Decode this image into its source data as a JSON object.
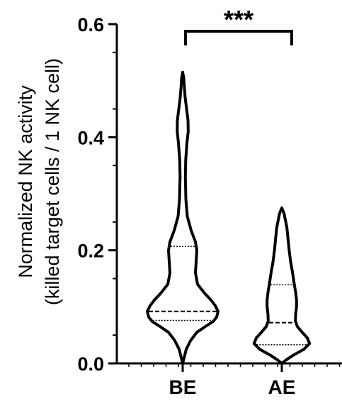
{
  "chart_data": {
    "type": "violin",
    "title": "",
    "ylabel_line1": "Normalized NK activity",
    "ylabel_line2": "(killed target cells / 1 NK cell)",
    "xlabel": "",
    "ylim": [
      0,
      0.6
    ],
    "yticks": [
      0.0,
      0.2,
      0.4,
      0.6
    ],
    "ytick_labels": [
      "0.0",
      "0.2",
      "0.4",
      "0.6"
    ],
    "grid": false,
    "categories": [
      "BE",
      "AE"
    ],
    "series": [
      {
        "category": "BE",
        "min": 0.0,
        "max": 0.515,
        "q1": 0.076,
        "median": 0.092,
        "q3": 0.207,
        "density": [
          [
            0.0,
            0.0
          ],
          [
            0.01,
            0.04
          ],
          [
            0.025,
            0.1
          ],
          [
            0.04,
            0.22
          ],
          [
            0.055,
            0.4
          ],
          [
            0.066,
            0.66
          ],
          [
            0.074,
            0.86
          ],
          [
            0.082,
            0.96
          ],
          [
            0.092,
            1.0
          ],
          [
            0.102,
            0.92
          ],
          [
            0.112,
            0.8
          ],
          [
            0.124,
            0.62
          ],
          [
            0.14,
            0.42
          ],
          [
            0.16,
            0.36
          ],
          [
            0.18,
            0.38
          ],
          [
            0.2,
            0.4
          ],
          [
            0.215,
            0.36
          ],
          [
            0.235,
            0.24
          ],
          [
            0.26,
            0.13
          ],
          [
            0.29,
            0.09
          ],
          [
            0.33,
            0.075
          ],
          [
            0.36,
            0.085
          ],
          [
            0.39,
            0.12
          ],
          [
            0.41,
            0.155
          ],
          [
            0.43,
            0.15
          ],
          [
            0.45,
            0.11
          ],
          [
            0.47,
            0.07
          ],
          [
            0.49,
            0.045
          ],
          [
            0.505,
            0.03
          ],
          [
            0.515,
            0.0
          ]
        ]
      },
      {
        "category": "AE",
        "min": 0.0,
        "max": 0.275,
        "q1": 0.033,
        "median": 0.072,
        "q3": 0.139,
        "density": [
          [
            0.0,
            0.0
          ],
          [
            0.006,
            0.15
          ],
          [
            0.015,
            0.42
          ],
          [
            0.025,
            0.78
          ],
          [
            0.035,
            0.98
          ],
          [
            0.045,
            0.9
          ],
          [
            0.055,
            0.72
          ],
          [
            0.065,
            0.55
          ],
          [
            0.075,
            0.48
          ],
          [
            0.088,
            0.49
          ],
          [
            0.1,
            0.52
          ],
          [
            0.112,
            0.52
          ],
          [
            0.125,
            0.49
          ],
          [
            0.14,
            0.44
          ],
          [
            0.16,
            0.38
          ],
          [
            0.18,
            0.31
          ],
          [
            0.2,
            0.26
          ],
          [
            0.22,
            0.22
          ],
          [
            0.24,
            0.18
          ],
          [
            0.255,
            0.12
          ],
          [
            0.265,
            0.08
          ],
          [
            0.275,
            0.0
          ]
        ]
      }
    ],
    "significance": {
      "label": "***",
      "between": [
        "BE",
        "AE"
      ]
    }
  }
}
